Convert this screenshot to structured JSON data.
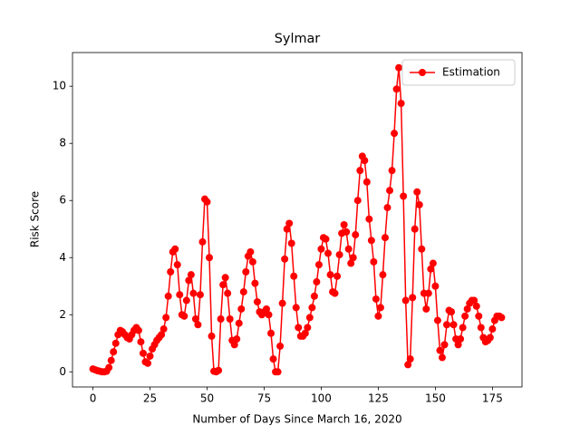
{
  "chart_data": {
    "type": "line",
    "title": "Sylmar",
    "xlabel": "Number of Days Since March 16, 2020",
    "ylabel": "Risk Score",
    "x": [
      0,
      1,
      2,
      3,
      4,
      5,
      6,
      7,
      8,
      9,
      10,
      11,
      12,
      13,
      14,
      15,
      16,
      17,
      18,
      19,
      20,
      21,
      22,
      23,
      24,
      25,
      26,
      27,
      28,
      29,
      30,
      31,
      32,
      33,
      34,
      35,
      36,
      37,
      38,
      39,
      40,
      41,
      42,
      43,
      44,
      45,
      46,
      47,
      48,
      49,
      50,
      51,
      52,
      53,
      54,
      55,
      56,
      57,
      58,
      59,
      60,
      61,
      62,
      63,
      64,
      65,
      66,
      67,
      68,
      69,
      70,
      71,
      72,
      73,
      74,
      75,
      76,
      77,
      78,
      79,
      80,
      81,
      82,
      83,
      84,
      85,
      86,
      87,
      88,
      89,
      90,
      91,
      92,
      93,
      94,
      95,
      96,
      97,
      98,
      99,
      100,
      101,
      102,
      103,
      104,
      105,
      106,
      107,
      108,
      109,
      110,
      111,
      112,
      113,
      114,
      115,
      116,
      117,
      118,
      119,
      120,
      121,
      122,
      123,
      124,
      125,
      126,
      127,
      128,
      129,
      130,
      131,
      132,
      133,
      134,
      135,
      136,
      137,
      138,
      139,
      140,
      141,
      142,
      143,
      144,
      145,
      146,
      147,
      148,
      149,
      150,
      151,
      152,
      153,
      154,
      155,
      156,
      157,
      158,
      159,
      160,
      161,
      162,
      163,
      164,
      165,
      166,
      167,
      168,
      169,
      170,
      171,
      172,
      173,
      174,
      175,
      176,
      177,
      178,
      179
    ],
    "series": [
      {
        "name": "Estimation",
        "color": "#ff0000",
        "values": [
          0.1,
          0.07,
          0.04,
          0.02,
          0,
          0,
          0.02,
          0.15,
          0.4,
          0.7,
          1.0,
          1.3,
          1.45,
          1.4,
          1.3,
          1.2,
          1.15,
          1.3,
          1.45,
          1.55,
          1.45,
          1.05,
          0.65,
          0.35,
          0.3,
          0.55,
          0.8,
          0.95,
          1.1,
          1.2,
          1.3,
          1.5,
          1.9,
          2.65,
          3.5,
          4.2,
          4.3,
          3.75,
          2.7,
          2.0,
          1.95,
          2.5,
          3.2,
          3.4,
          2.75,
          1.85,
          1.65,
          2.7,
          4.55,
          6.05,
          5.95,
          4.0,
          1.25,
          0.02,
          0,
          0.05,
          1.85,
          3.05,
          3.3,
          2.75,
          1.85,
          1.1,
          0.95,
          1.15,
          1.7,
          2.2,
          2.8,
          3.5,
          4.05,
          4.2,
          3.85,
          3.1,
          2.45,
          2.1,
          2.0,
          2.1,
          2.2,
          2.0,
          1.35,
          0.45,
          0,
          0,
          0.9,
          2.4,
          3.95,
          5.0,
          5.2,
          4.5,
          3.35,
          2.25,
          1.55,
          1.25,
          1.25,
          1.35,
          1.55,
          1.9,
          2.25,
          2.65,
          3.15,
          3.75,
          4.3,
          4.7,
          4.65,
          4.15,
          3.4,
          2.8,
          2.75,
          3.35,
          4.1,
          4.85,
          5.15,
          4.9,
          4.3,
          3.8,
          4.0,
          4.8,
          6.0,
          7.05,
          7.55,
          7.4,
          6.65,
          5.35,
          4.6,
          3.85,
          2.55,
          1.95,
          2.25,
          3.4,
          4.7,
          5.75,
          6.35,
          7.05,
          8.35,
          9.9,
          10.65,
          9.4,
          6.15,
          2.5,
          0.25,
          0.45,
          2.6,
          5.0,
          6.3,
          5.85,
          4.3,
          2.75,
          2.2,
          2.75,
          3.6,
          3.8,
          3.0,
          1.8,
          0.75,
          0.5,
          0.95,
          1.65,
          2.15,
          2.1,
          1.65,
          1.15,
          0.95,
          1.15,
          1.55,
          1.95,
          2.2,
          2.4,
          2.5,
          2.5,
          2.3,
          1.95,
          1.55,
          1.2,
          1.05,
          1.1,
          1.2,
          1.5,
          1.8,
          1.95,
          1.95,
          1.9
        ]
      }
    ],
    "xlim": [
      -8.95,
      187.95
    ],
    "ylim": [
      -0.53,
      11.18
    ],
    "xticks": [
      0,
      25,
      50,
      75,
      100,
      125,
      150,
      175
    ],
    "yticks": [
      0,
      2,
      4,
      6,
      8,
      10
    ],
    "grid": false,
    "legend": "upper right",
    "marker": "circle"
  }
}
